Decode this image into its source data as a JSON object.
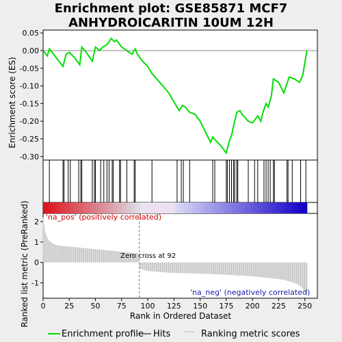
{
  "title_line1": "Enrichment plot: GSE85871 MCF7",
  "title_line2": "ANHYDROICARITIN 10UM 12H",
  "colors": {
    "es_line": "#00dd00",
    "hits": "#000000",
    "ranking": "#bbbbbb",
    "pos_label": "#cc0000",
    "neg_label": "#1a1aaa",
    "background": "#eeeeee",
    "panel": "#ffffff"
  },
  "legend": {
    "es": "Enrichment profile",
    "hits": "Hits",
    "ranking": "Ranking metric scores"
  },
  "chart_data": [
    {
      "type": "line",
      "name": "enrichment-profile",
      "ylabel": "Enrichment score (ES)",
      "xlim": [
        0,
        262
      ],
      "ylim": [
        -0.31,
        0.058
      ],
      "yticks": [
        0.05,
        0.0,
        -0.05,
        -0.1,
        -0.15,
        -0.2,
        -0.25,
        -0.3
      ],
      "ytick_labels": [
        "0.05",
        "0.00",
        "-0.05",
        "-0.10",
        "-0.15",
        "-0.20",
        "-0.25",
        "-0.30"
      ],
      "x": [
        0,
        4,
        6,
        10,
        15,
        19,
        22,
        25,
        30,
        35,
        37,
        40,
        47,
        50,
        54,
        57,
        60,
        62,
        65,
        68,
        70,
        75,
        80,
        82,
        85,
        88,
        90,
        95,
        100,
        104,
        110,
        120,
        128,
        130,
        133,
        136,
        140,
        145,
        150,
        155,
        160,
        162,
        165,
        170,
        175,
        178,
        180,
        183,
        185,
        188,
        190,
        196,
        200,
        205,
        208,
        210,
        213,
        215,
        218,
        220,
        225,
        230,
        235,
        240,
        245,
        248,
        252
      ],
      "y": [
        0.0,
        -0.015,
        0.005,
        -0.01,
        -0.03,
        -0.045,
        -0.01,
        -0.005,
        -0.02,
        -0.04,
        0.01,
        0.0,
        -0.03,
        0.01,
        0.0,
        0.01,
        0.015,
        0.02,
        0.035,
        0.025,
        0.03,
        0.01,
        0.0,
        -0.005,
        -0.01,
        0.005,
        -0.01,
        -0.03,
        -0.045,
        -0.065,
        -0.085,
        -0.12,
        -0.16,
        -0.17,
        -0.155,
        -0.16,
        -0.175,
        -0.18,
        -0.2,
        -0.23,
        -0.26,
        -0.245,
        -0.255,
        -0.27,
        -0.29,
        -0.255,
        -0.24,
        -0.2,
        -0.175,
        -0.17,
        -0.18,
        -0.2,
        -0.205,
        -0.185,
        -0.2,
        -0.175,
        -0.15,
        -0.16,
        -0.13,
        -0.08,
        -0.09,
        -0.12,
        -0.075,
        -0.08,
        -0.09,
        -0.07,
        0.0
      ]
    },
    {
      "type": "line",
      "name": "hits",
      "hit_ranks": [
        6,
        19,
        20,
        24,
        26,
        34,
        36,
        37,
        47,
        49,
        50,
        55,
        58,
        61,
        63,
        66,
        67,
        73,
        74,
        80,
        87,
        88,
        104,
        128,
        132,
        134,
        140,
        162,
        164,
        175,
        176,
        178,
        180,
        182,
        183,
        185,
        186,
        196,
        202,
        205,
        211,
        213,
        215,
        217,
        220,
        221,
        233,
        234,
        238,
        246,
        251
      ]
    },
    {
      "type": "area",
      "name": "ranking-metric",
      "xlabel": "Rank in Ordered Dataset",
      "ylabel": "Ranked list metric (PreRanked)",
      "xlim": [
        0,
        262
      ],
      "ylim": [
        -1.75,
        2.4
      ],
      "xticks": [
        0,
        25,
        50,
        75,
        100,
        125,
        150,
        175,
        200,
        225,
        250
      ],
      "xtick_labels": [
        "0",
        "25",
        "50",
        "75",
        "100",
        "125",
        "150",
        "175",
        "200",
        "225",
        "250"
      ],
      "yticks": [
        2,
        1,
        0,
        -1
      ],
      "ytick_labels": [
        "2",
        "1",
        "0",
        "-1"
      ],
      "x": [
        0,
        1,
        2,
        4,
        6,
        10,
        15,
        25,
        40,
        60,
        80,
        91,
        92,
        100,
        120,
        150,
        175,
        200,
        220,
        230,
        236,
        240,
        244,
        247,
        249,
        251,
        252
      ],
      "y": [
        2.2,
        1.85,
        1.5,
        1.2,
        1.05,
        0.9,
        0.82,
        0.78,
        0.7,
        0.6,
        0.5,
        0.45,
        -0.3,
        -0.42,
        -0.5,
        -0.55,
        -0.6,
        -0.68,
        -0.78,
        -0.85,
        -0.95,
        -1.0,
        -1.1,
        -1.2,
        -1.35,
        -1.5,
        -1.55
      ],
      "zero_cross_rank": 92,
      "zero_cross_label": "Zero cross at 92",
      "pos_label": "'na_pos' (positively correlated)",
      "neg_label": "'na_neg' (negatively correlated)"
    }
  ]
}
